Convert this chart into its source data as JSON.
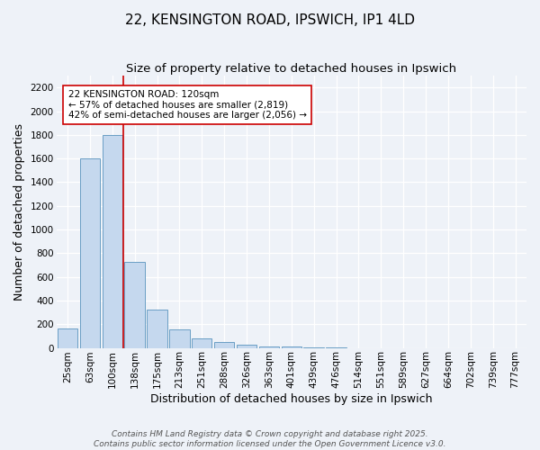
{
  "title1": "22, KENSINGTON ROAD, IPSWICH, IP1 4LD",
  "title2": "Size of property relative to detached houses in Ipswich",
  "xlabel": "Distribution of detached houses by size in Ipswich",
  "ylabel": "Number of detached properties",
  "bar_labels": [
    "25sqm",
    "63sqm",
    "100sqm",
    "138sqm",
    "175sqm",
    "213sqm",
    "251sqm",
    "288sqm",
    "326sqm",
    "363sqm",
    "401sqm",
    "439sqm",
    "476sqm",
    "514sqm",
    "551sqm",
    "589sqm",
    "627sqm",
    "664sqm",
    "702sqm",
    "739sqm",
    "777sqm"
  ],
  "bar_values": [
    165,
    1600,
    1800,
    730,
    320,
    160,
    80,
    50,
    25,
    10,
    15,
    5,
    5,
    0,
    0,
    0,
    0,
    0,
    0,
    0,
    0
  ],
  "bar_color": "#c5d8ee",
  "bar_edge_color": "#6a9ec5",
  "ylim": [
    0,
    2300
  ],
  "yticks": [
    0,
    200,
    400,
    600,
    800,
    1000,
    1200,
    1400,
    1600,
    1800,
    2000,
    2200
  ],
  "vline_color": "#cc0000",
  "annotation_text": "22 KENSINGTON ROAD: 120sqm\n← 57% of detached houses are smaller (2,819)\n42% of semi-detached houses are larger (2,056) →",
  "annotation_box_color": "#ffffff",
  "annotation_box_edge": "#cc0000",
  "footer1": "Contains HM Land Registry data © Crown copyright and database right 2025.",
  "footer2": "Contains public sector information licensed under the Open Government Licence v3.0.",
  "background_color": "#eef2f8",
  "grid_color": "#ffffff",
  "title_fontsize": 11,
  "subtitle_fontsize": 9.5,
  "axis_label_fontsize": 9,
  "tick_fontsize": 7.5,
  "annotation_fontsize": 7.5,
  "footer_fontsize": 6.5
}
